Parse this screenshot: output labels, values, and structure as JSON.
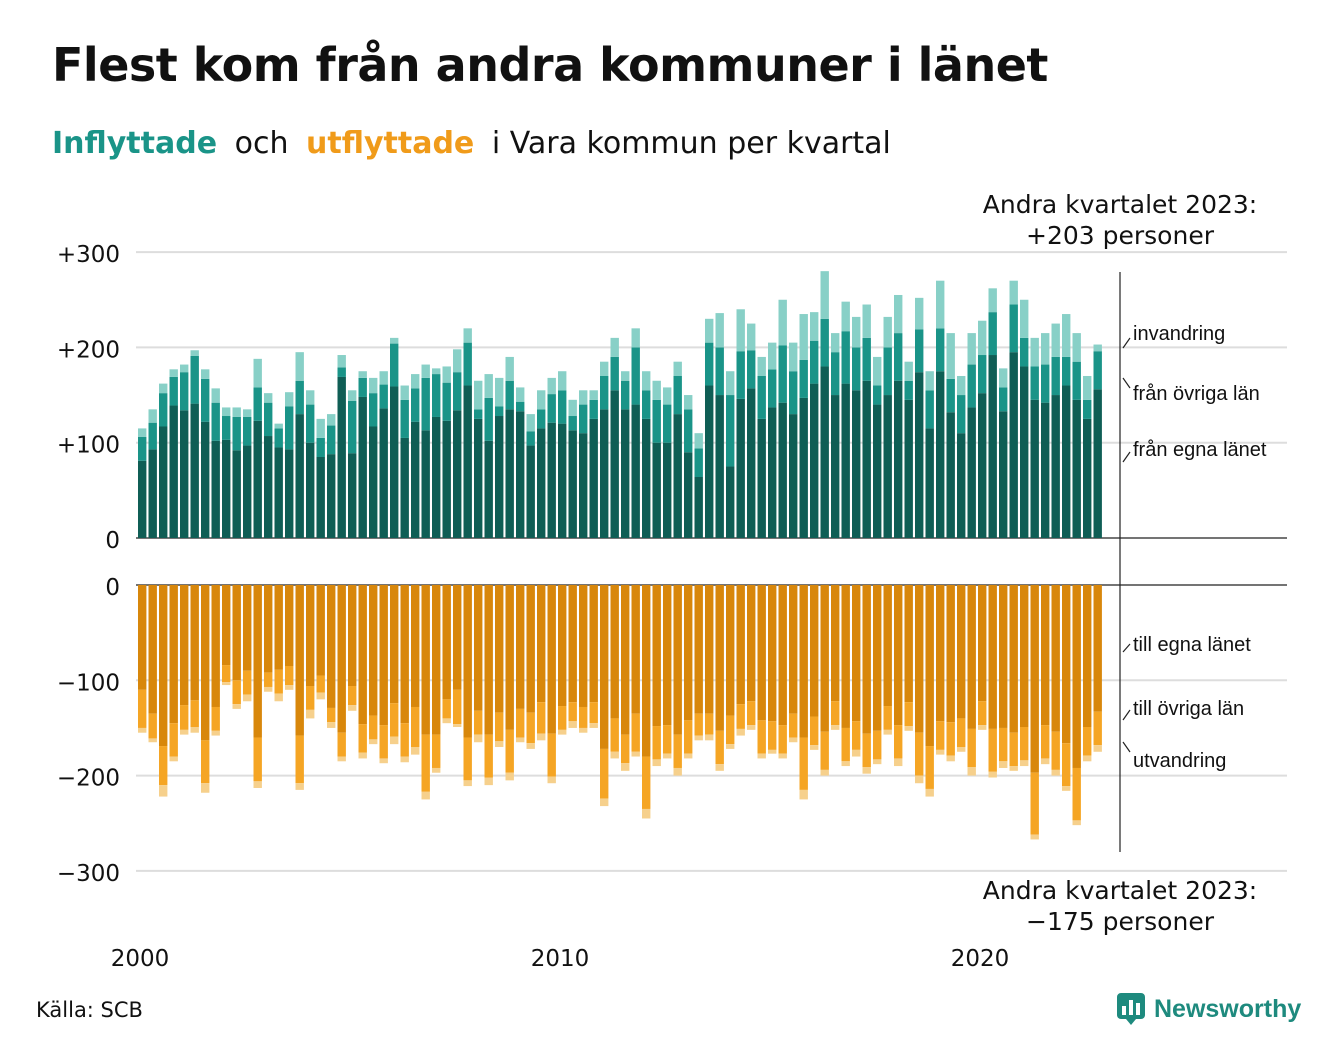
{
  "title": "Flest kom från andra kommuner i länet",
  "subtitle": {
    "part1": "Inflyttade",
    "part2": "och",
    "part3": "utflyttade",
    "part4": "i Vara kommun per kvartal"
  },
  "source": "Källa: SCB",
  "logo_text": "Newsworthy",
  "colors": {
    "in_egna": "#0f5e55",
    "in_ovriga": "#1a9488",
    "in_invandring": "#88d0c7",
    "out_egna": "#d8870b",
    "out_ovriga": "#f5a524",
    "out_utvandring": "#f6d08c"
  },
  "chart_data": {
    "type": "bar",
    "stacked": true,
    "x_unit": "kvartal",
    "x_start": "2000 Q1",
    "x_end": "2023 Q2",
    "x_ticks": [
      "2000",
      "2010",
      "2020"
    ],
    "panels": [
      {
        "name": "inflyttade",
        "y_ticks": [
          "+300",
          "+200",
          "+100",
          "0"
        ],
        "y_tick_values": [
          300,
          200,
          100,
          0
        ],
        "ylim": [
          0,
          300
        ],
        "series_labels": [
          "från egna länet",
          "från övriga län",
          "invandring"
        ],
        "total_per_quarter": [
          115,
          135,
          162,
          177,
          182,
          197,
          177,
          157,
          137,
          137,
          135,
          188,
          152,
          120,
          153,
          195,
          155,
          125,
          130,
          192,
          155,
          175,
          168,
          175,
          210,
          160,
          172,
          182,
          178,
          180,
          198,
          220,
          165,
          172,
          168,
          190,
          158,
          130,
          155,
          168,
          175,
          145,
          155,
          155,
          185,
          210,
          175,
          220,
          175,
          165,
          158,
          185,
          150,
          110,
          230,
          236,
          175,
          240,
          225,
          190,
          205,
          250,
          205,
          235,
          237,
          280,
          215,
          248,
          232,
          245,
          190,
          232,
          255,
          185,
          252,
          175,
          270,
          215,
          170,
          215,
          228,
          262,
          178,
          270,
          250,
          210,
          215,
          225,
          235,
          215,
          170,
          203
        ],
        "invandring_per_quarter": [
          9,
          14,
          10,
          8,
          8,
          6,
          10,
          15,
          9,
          10,
          8,
          30,
          10,
          5,
          15,
          30,
          15,
          20,
          12,
          13,
          11,
          7,
          16,
          14,
          6,
          15,
          15,
          14,
          6,
          17,
          24,
          15,
          30,
          25,
          30,
          25,
          15,
          18,
          20,
          17,
          20,
          17,
          15,
          10,
          15,
          20,
          10,
          20,
          20,
          20,
          18,
          15,
          15,
          16,
          25,
          36,
          25,
          44,
          28,
          20,
          28,
          48,
          30,
          48,
          30,
          50,
          20,
          31,
          32,
          35,
          30,
          32,
          40,
          20,
          33,
          20,
          50,
          48,
          20,
          33,
          36,
          25,
          20,
          25,
          40,
          30,
          33,
          35,
          45,
          30,
          25,
          7
        ],
        "fran_ovriga_per_quarter": [
          25,
          28,
          35,
          30,
          40,
          50,
          45,
          40,
          25,
          35,
          30,
          35,
          35,
          20,
          45,
          35,
          40,
          20,
          30,
          10,
          55,
          20,
          35,
          25,
          45,
          40,
          35,
          55,
          45,
          40,
          40,
          45,
          10,
          45,
          10,
          30,
          10,
          15,
          20,
          30,
          35,
          15,
          30,
          20,
          35,
          35,
          30,
          60,
          30,
          45,
          40,
          40,
          45,
          30,
          45,
          50,
          75,
          50,
          40,
          45,
          40,
          60,
          45,
          40,
          45,
          50,
          45,
          55,
          45,
          45,
          20,
          50,
          50,
          20,
          45,
          40,
          45,
          35,
          40,
          45,
          40,
          45,
          25,
          50,
          30,
          35,
          40,
          40,
          30,
          40,
          20,
          40
        ],
        "last_total_label_line1": "Andra kvartalet 2023:",
        "last_total_label_line2": "+203 personer"
      },
      {
        "name": "utflyttade",
        "y_ticks": [
          "0",
          "−100",
          "−200",
          "−300"
        ],
        "y_tick_values": [
          0,
          -100,
          -200,
          -300
        ],
        "ylim": [
          -300,
          0
        ],
        "series_labels": [
          "till egna länet",
          "till övriga län",
          "utvandring"
        ],
        "total_per_quarter": [
          -155,
          -165,
          -222,
          -185,
          -157,
          -155,
          -218,
          -158,
          -105,
          -130,
          -122,
          -213,
          -112,
          -122,
          -110,
          -215,
          -140,
          -120,
          -150,
          -185,
          -132,
          -182,
          -167,
          -187,
          -167,
          -186,
          -178,
          -225,
          -197,
          -145,
          -149,
          -211,
          -165,
          -210,
          -170,
          -205,
          -165,
          -172,
          -163,
          -208,
          -157,
          -150,
          -155,
          -150,
          -232,
          -182,
          -195,
          -180,
          -245,
          -190,
          -182,
          -200,
          -182,
          -163,
          -163,
          -195,
          -172,
          -158,
          -152,
          -182,
          -177,
          -182,
          -165,
          -225,
          -173,
          -200,
          -152,
          -190,
          -180,
          -198,
          -188,
          -157,
          -190,
          -153,
          -208,
          -222,
          -178,
          -185,
          -175,
          -200,
          -152,
          -202,
          -192,
          -195,
          -190,
          -267,
          -188,
          -200,
          -216,
          -252,
          -185,
          -175
        ],
        "utvandring_per_quarter": [
          -5,
          -4,
          -12,
          -5,
          -5,
          -6,
          -10,
          -5,
          -3,
          -5,
          -7,
          -7,
          -5,
          -8,
          -5,
          -7,
          -9,
          -7,
          -6,
          -5,
          -6,
          -6,
          -5,
          -5,
          -8,
          -6,
          -8,
          -8,
          -5,
          -5,
          -3,
          -6,
          -8,
          -8,
          -6,
          -8,
          -5,
          -6,
          -7,
          -7,
          -5,
          -7,
          -5,
          -5,
          -8,
          -7,
          -8,
          -5,
          -10,
          -7,
          -5,
          -8,
          -5,
          -5,
          -6,
          -7,
          -5,
          -7,
          -5,
          -5,
          -4,
          -5,
          -5,
          -10,
          -5,
          -6,
          -5,
          -5,
          -7,
          -7,
          -5,
          -5,
          -8,
          -5,
          -8,
          -8,
          -5,
          -6,
          -5,
          -9,
          -5,
          -6,
          -7,
          -5,
          -6,
          -5,
          -6,
          -6,
          -5,
          -5,
          -6,
          -7
        ],
        "till_ovriga_per_quarter": [
          -40,
          -26,
          -41,
          -35,
          -26,
          -28,
          -45,
          -25,
          -18,
          -25,
          -25,
          -46,
          -15,
          -25,
          -20,
          -50,
          -25,
          -18,
          -15,
          -25,
          -20,
          -30,
          -25,
          -35,
          -35,
          -35,
          -42,
          -60,
          -35,
          -20,
          -36,
          -45,
          -25,
          -45,
          -30,
          -45,
          -30,
          -32,
          -33,
          -45,
          -25,
          -20,
          -22,
          -22,
          -52,
          -35,
          -30,
          -40,
          -55,
          -35,
          -30,
          -35,
          -35,
          -23,
          -22,
          -35,
          -30,
          -26,
          -25,
          -35,
          -30,
          -30,
          -25,
          -55,
          -30,
          -40,
          -25,
          -35,
          -30,
          -35,
          -30,
          -25,
          -35,
          -25,
          -45,
          -45,
          -30,
          -35,
          -30,
          -40,
          -25,
          -45,
          -35,
          -35,
          -35,
          -65,
          -35,
          -40,
          -45,
          -55,
          -30,
          -35
        ],
        "last_total_label_line1": "Andra kvartalet 2023:",
        "last_total_label_line2": "−175 personer"
      }
    ]
  }
}
